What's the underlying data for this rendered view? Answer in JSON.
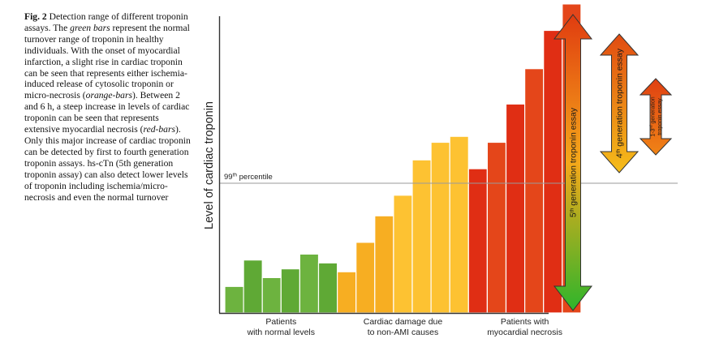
{
  "caption": {
    "fig_label": "Fig. 2",
    "segments": [
      {
        "text": " Detection range of different troponin assays. The ",
        "italic": false
      },
      {
        "text": "green bars",
        "italic": true
      },
      {
        "text": " represent the normal turnover range of troponin in healthy individuals. With the onset of myocardial infarction, a slight rise in cardiac troponin can be seen that represents either ischemia-induced release of cytosolic troponin or micro-necrosis (",
        "italic": false
      },
      {
        "text": "orange-bars",
        "italic": true
      },
      {
        "text": "). Between 2 and 6 h, a steep increase in levels of cardiac troponin can be seen that represents extensive myocardial necrosis (",
        "italic": false
      },
      {
        "text": "red-bars",
        "italic": true
      },
      {
        "text": "). Only this major increase of cardiac troponin can be detected by first to fourth generation troponin assays. hs-cTn (5th generation troponin assay) can also detect lower levels of troponin including ischemia/micro-necrosis and even the normal turnover",
        "italic": false
      }
    ]
  },
  "chart_data": {
    "type": "bar",
    "ylabel": "Level of cardiac troponin",
    "ylim": [
      0,
      100
    ],
    "reference_line": {
      "label_base": "99",
      "label_sup": "th",
      "label_rest": " percentile",
      "value": 44.5
    },
    "groups": [
      {
        "label_lines": [
          "Patients",
          "with normal levels"
        ],
        "color": "green",
        "values": [
          9,
          18,
          12,
          15,
          20,
          17
        ]
      },
      {
        "label_lines": [
          "Cardiac damage due",
          "to non-AMI causes"
        ],
        "color": "orange",
        "values": [
          14,
          24,
          33,
          40,
          52,
          58,
          60
        ]
      },
      {
        "label_lines": [
          "Patients with",
          "myocardial necrosis"
        ],
        "color": "red",
        "values": [
          49,
          58,
          71,
          83,
          96,
          105
        ]
      }
    ],
    "assay_arrows": [
      {
        "pre": "5",
        "sup": "th",
        "post": " generation troponin essay",
        "post2": "",
        "covers": "all"
      },
      {
        "pre": "4",
        "sup": "th",
        "post": " generation troponin essay",
        "post2": "",
        "covers": "non-AMI and necrosis"
      },
      {
        "pre": "1-3",
        "sup": "rd",
        "post": " generation",
        "post2": "troponin essay",
        "covers": "necrosis"
      }
    ]
  }
}
